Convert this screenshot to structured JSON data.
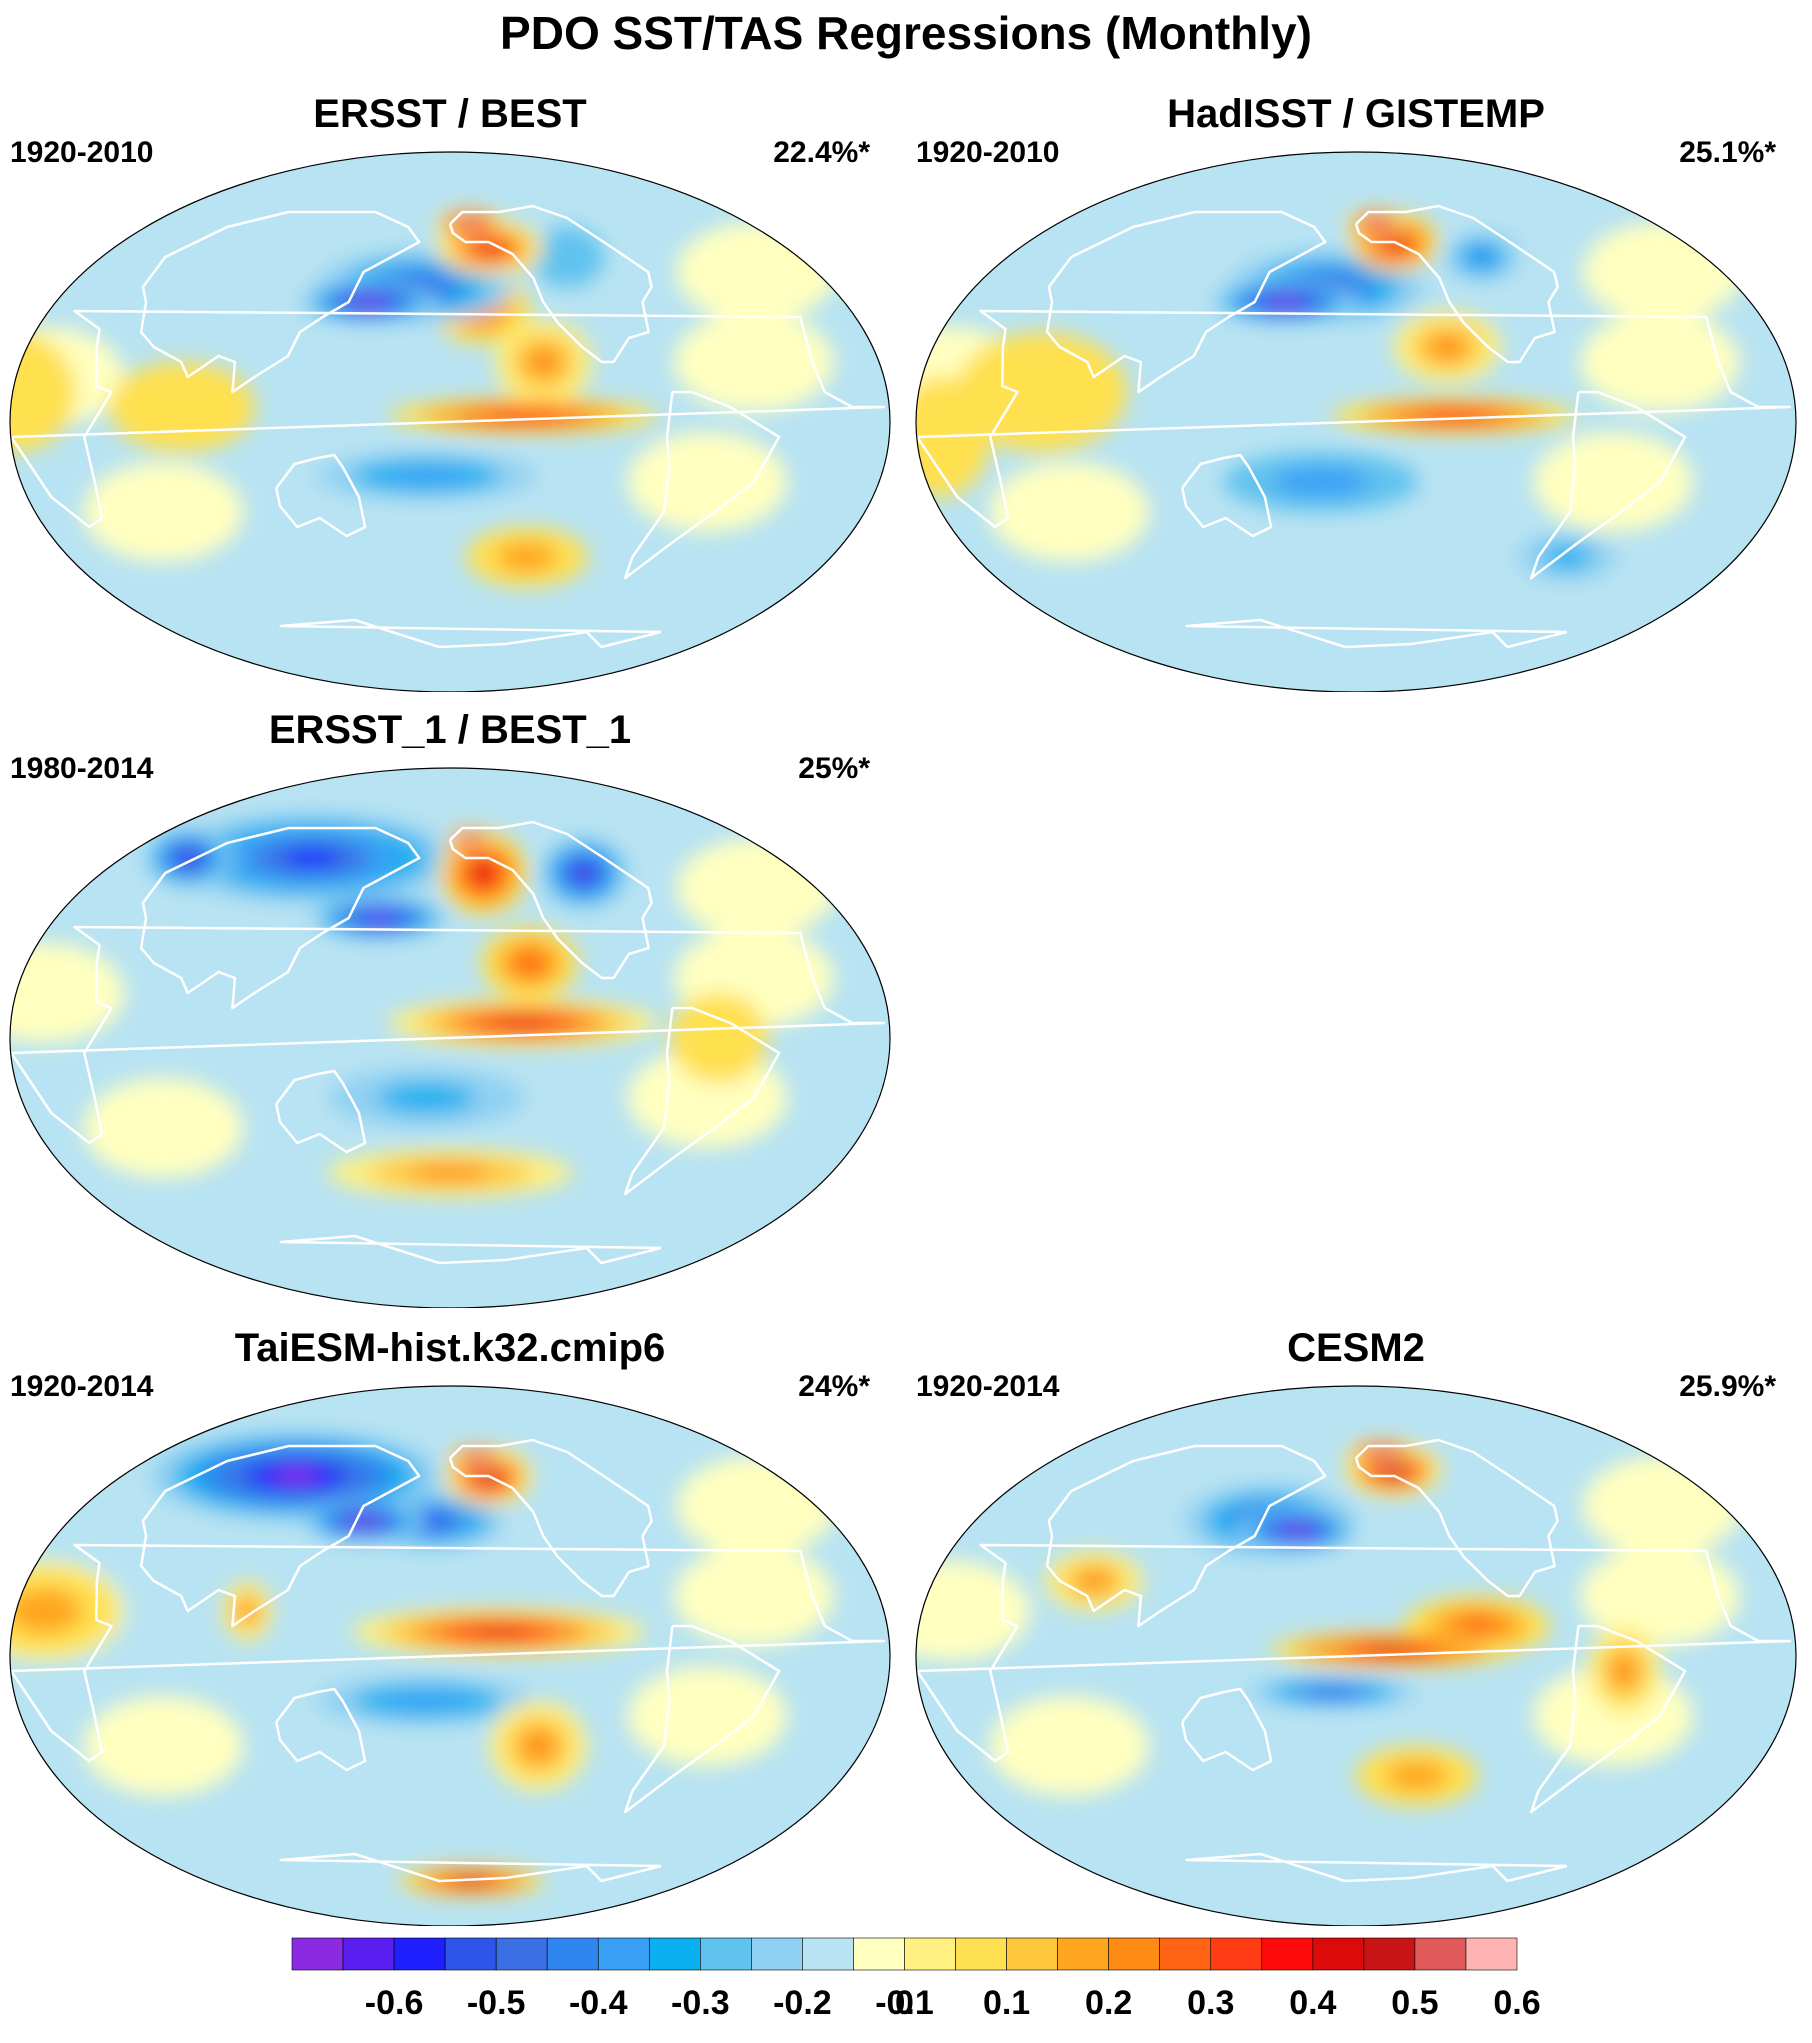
{
  "title": "PDO SST/TAS Regressions (Monthly)",
  "panels": [
    {
      "title": "ERSST / BEST",
      "period": "1920-2010",
      "variance": "22.4%*",
      "features": [
        {
          "lon": 150,
          "lat": 40,
          "v": -0.6,
          "rx": 28,
          "ry": 7
        },
        {
          "lon": 172,
          "lat": 45,
          "v": -0.4,
          "rx": 40,
          "ry": 12
        },
        {
          "lon": 205,
          "lat": 38,
          "v": 0.35,
          "rx": 20,
          "ry": 12
        },
        {
          "lon": 215,
          "lat": 58,
          "v": 0.45,
          "rx": 22,
          "ry": 9
        },
        {
          "lon": 205,
          "lat": 66,
          "v": 0.65,
          "rx": 14,
          "ry": 5
        },
        {
          "lon": 220,
          "lat": 2,
          "v": 0.42,
          "rx": 55,
          "ry": 6
        },
        {
          "lon": 230,
          "lat": 20,
          "v": 0.3,
          "rx": 20,
          "ry": 14
        },
        {
          "lon": 180,
          "lat": -18,
          "v": -0.25,
          "rx": 45,
          "ry": 8
        },
        {
          "lon": 230,
          "lat": -45,
          "v": 0.2,
          "rx": 25,
          "ry": 10
        },
        {
          "lon": 80,
          "lat": 5,
          "v": 0.12,
          "rx": 30,
          "ry": 15
        },
        {
          "lon": 10,
          "lat": 10,
          "v": 0.1,
          "rx": 25,
          "ry": 20
        },
        {
          "lon": 260,
          "lat": 55,
          "v": -0.15,
          "rx": 15,
          "ry": 10
        }
      ]
    },
    {
      "title": "HadISST / GISTEMP",
      "period": "1920-2010",
      "variance": "25.1%*",
      "features": [
        {
          "lon": 155,
          "lat": 40,
          "v": -0.6,
          "rx": 30,
          "ry": 7
        },
        {
          "lon": 175,
          "lat": 45,
          "v": -0.4,
          "rx": 40,
          "ry": 12
        },
        {
          "lon": 215,
          "lat": 60,
          "v": 0.5,
          "rx": 18,
          "ry": 10
        },
        {
          "lon": 205,
          "lat": 66,
          "v": 0.65,
          "rx": 12,
          "ry": 5
        },
        {
          "lon": 230,
          "lat": 2,
          "v": 0.42,
          "rx": 50,
          "ry": 6
        },
        {
          "lon": 230,
          "lat": 25,
          "v": 0.3,
          "rx": 22,
          "ry": 12
        },
        {
          "lon": 175,
          "lat": -20,
          "v": -0.22,
          "rx": 40,
          "ry": 10
        },
        {
          "lon": 265,
          "lat": 55,
          "v": -0.3,
          "rx": 15,
          "ry": 8
        },
        {
          "lon": 60,
          "lat": 10,
          "v": 0.1,
          "rx": 35,
          "ry": 20
        },
        {
          "lon": 20,
          "lat": -5,
          "v": 0.12,
          "rx": 20,
          "ry": 20
        },
        {
          "lon": 300,
          "lat": -45,
          "v": -0.2,
          "rx": 20,
          "ry": 8
        }
      ]
    },
    {
      "title": "ERSST_1 / BEST_1",
      "period": "1980-2014",
      "variance": "25%*",
      "features": [
        {
          "lon": 100,
          "lat": 60,
          "v": -0.45,
          "rx": 60,
          "ry": 15
        },
        {
          "lon": 155,
          "lat": 40,
          "v": -0.55,
          "rx": 28,
          "ry": 7
        },
        {
          "lon": 210,
          "lat": 55,
          "v": 0.5,
          "rx": 18,
          "ry": 14
        },
        {
          "lon": 205,
          "lat": 66,
          "v": 0.65,
          "rx": 10,
          "ry": 4
        },
        {
          "lon": 220,
          "lat": 5,
          "v": 0.45,
          "rx": 55,
          "ry": 8
        },
        {
          "lon": 225,
          "lat": 25,
          "v": 0.35,
          "rx": 20,
          "ry": 12
        },
        {
          "lon": 190,
          "lat": -45,
          "v": 0.3,
          "rx": 50,
          "ry": 8
        },
        {
          "lon": 270,
          "lat": 55,
          "v": -0.5,
          "rx": 18,
          "ry": 12
        },
        {
          "lon": 20,
          "lat": 60,
          "v": -0.5,
          "rx": 18,
          "ry": 10
        },
        {
          "lon": 180,
          "lat": -20,
          "v": -0.2,
          "rx": 40,
          "ry": 10
        },
        {
          "lon": 300,
          "lat": 0,
          "v": 0.15,
          "rx": 20,
          "ry": 15
        }
      ]
    },
    {
      "title": "TaiESM-hist.k32.cmip6",
      "period": "1920-2014",
      "variance": "24%*",
      "features": [
        {
          "lon": 90,
          "lat": 60,
          "v": -0.55,
          "rx": 60,
          "ry": 15
        },
        {
          "lon": 145,
          "lat": 45,
          "v": -0.6,
          "rx": 25,
          "ry": 7
        },
        {
          "lon": 180,
          "lat": 45,
          "v": -0.45,
          "rx": 30,
          "ry": 9
        },
        {
          "lon": 215,
          "lat": 60,
          "v": 0.55,
          "rx": 18,
          "ry": 10
        },
        {
          "lon": 210,
          "lat": 66,
          "v": 0.65,
          "rx": 12,
          "ry": 4
        },
        {
          "lon": 210,
          "lat": 8,
          "v": 0.45,
          "rx": 60,
          "ry": 8
        },
        {
          "lon": 230,
          "lat": -30,
          "v": 0.3,
          "rx": 20,
          "ry": 15
        },
        {
          "lon": 210,
          "lat": -75,
          "v": 0.5,
          "rx": 30,
          "ry": 5
        },
        {
          "lon": 180,
          "lat": -15,
          "v": -0.25,
          "rx": 45,
          "ry": 8
        },
        {
          "lon": 20,
          "lat": 15,
          "v": 0.2,
          "rx": 30,
          "ry": 15
        },
        {
          "lon": 105,
          "lat": 15,
          "v": 0.3,
          "rx": 10,
          "ry": 10
        }
      ]
    },
    {
      "title": "CESM2",
      "period": "1920-2014",
      "variance": "25.9%*",
      "features": [
        {
          "lon": 160,
          "lat": 42,
          "v": -0.6,
          "rx": 25,
          "ry": 7
        },
        {
          "lon": 145,
          "lat": 45,
          "v": -0.4,
          "rx": 35,
          "ry": 12
        },
        {
          "lon": 215,
          "lat": 62,
          "v": 0.6,
          "rx": 20,
          "ry": 9
        },
        {
          "lon": 210,
          "lat": 68,
          "v": 0.65,
          "rx": 14,
          "ry": 4
        },
        {
          "lon": 205,
          "lat": 2,
          "v": 0.5,
          "rx": 50,
          "ry": 6
        },
        {
          "lon": 240,
          "lat": 10,
          "v": 0.35,
          "rx": 30,
          "ry": 10
        },
        {
          "lon": 180,
          "lat": -12,
          "v": -0.4,
          "rx": 35,
          "ry": 5
        },
        {
          "lon": 220,
          "lat": -40,
          "v": 0.2,
          "rx": 25,
          "ry": 10
        },
        {
          "lon": 300,
          "lat": -5,
          "v": 0.3,
          "rx": 15,
          "ry": 15
        },
        {
          "lon": 75,
          "lat": 25,
          "v": 0.25,
          "rx": 20,
          "ry": 10
        }
      ]
    }
  ],
  "colorbar": {
    "colors": [
      "#8a2be2",
      "#5a1ff0",
      "#1f1fff",
      "#2f55e8",
      "#3b6fe4",
      "#2f86f0",
      "#3aa0f5",
      "#0ab0f0",
      "#60c2ef",
      "#90d0f2",
      "#b8e3f2",
      "#ffffc0",
      "#fff080",
      "#ffe050",
      "#ffc83c",
      "#ffa51e",
      "#ff8a14",
      "#ff6414",
      "#ff3c14",
      "#ff0a0a",
      "#dc0a0a",
      "#c81414",
      "#e05a5a",
      "#ffb4b4"
    ],
    "labels": [
      "-0.6",
      "-0.5",
      "-0.4",
      "-0.3",
      "-0.2",
      "-0.1",
      "0",
      "0.1",
      "0.2",
      "0.3",
      "0.4",
      "0.5",
      "0.6"
    ]
  }
}
